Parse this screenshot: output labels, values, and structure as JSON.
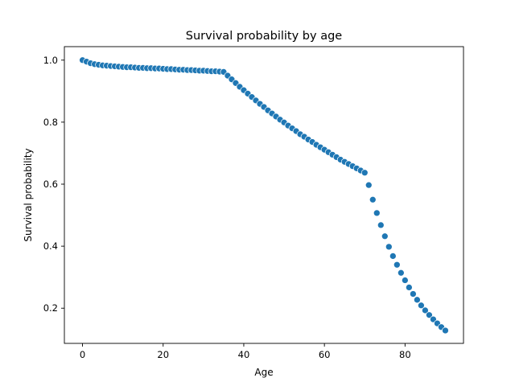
{
  "chart_data": {
    "type": "scatter",
    "title": "Survival probability by age",
    "xlabel": "Age",
    "ylabel": "Survival probability",
    "xlim": [
      -4.5,
      94.5
    ],
    "ylim": [
      0.0865,
      1.0435
    ],
    "xticks": [
      0,
      20,
      40,
      60,
      80
    ],
    "yticks": [
      0.2,
      0.4,
      0.6,
      0.8,
      1.0
    ],
    "ytick_labels": [
      "0.2",
      "0.4",
      "0.6",
      "0.8",
      "1.0"
    ],
    "grid": false,
    "marker_color": "#1f77b4",
    "x": [
      0,
      1,
      2,
      3,
      4,
      5,
      6,
      7,
      8,
      9,
      10,
      11,
      12,
      13,
      14,
      15,
      16,
      17,
      18,
      19,
      20,
      21,
      22,
      23,
      24,
      25,
      26,
      27,
      28,
      29,
      30,
      31,
      32,
      33,
      34,
      35,
      36,
      37,
      38,
      39,
      40,
      41,
      42,
      43,
      44,
      45,
      46,
      47,
      48,
      49,
      50,
      51,
      52,
      53,
      54,
      55,
      56,
      57,
      58,
      59,
      60,
      61,
      62,
      63,
      64,
      65,
      66,
      67,
      68,
      69,
      70,
      71,
      72,
      73,
      74,
      75,
      76,
      77,
      78,
      79,
      80,
      81,
      82,
      83,
      84,
      85,
      86,
      87,
      88,
      89,
      90
    ],
    "y": [
      1.0,
      0.995,
      0.99,
      0.987,
      0.985,
      0.983,
      0.982,
      0.981,
      0.98,
      0.979,
      0.978,
      0.977,
      0.977,
      0.976,
      0.975,
      0.975,
      0.974,
      0.974,
      0.973,
      0.973,
      0.972,
      0.971,
      0.971,
      0.97,
      0.969,
      0.969,
      0.968,
      0.968,
      0.967,
      0.966,
      0.966,
      0.965,
      0.964,
      0.964,
      0.963,
      0.962,
      0.95,
      0.938,
      0.926,
      0.914,
      0.903,
      0.892,
      0.881,
      0.87,
      0.859,
      0.849,
      0.838,
      0.828,
      0.818,
      0.808,
      0.799,
      0.789,
      0.78,
      0.771,
      0.761,
      0.753,
      0.744,
      0.736,
      0.727,
      0.719,
      0.711,
      0.703,
      0.695,
      0.687,
      0.679,
      0.672,
      0.665,
      0.658,
      0.651,
      0.644,
      0.637,
      0.597,
      0.55,
      0.507,
      0.468,
      0.432,
      0.398,
      0.368,
      0.34,
      0.314,
      0.29,
      0.267,
      0.246,
      0.227,
      0.209,
      0.193,
      0.178,
      0.164,
      0.151,
      0.139,
      0.128
    ]
  }
}
